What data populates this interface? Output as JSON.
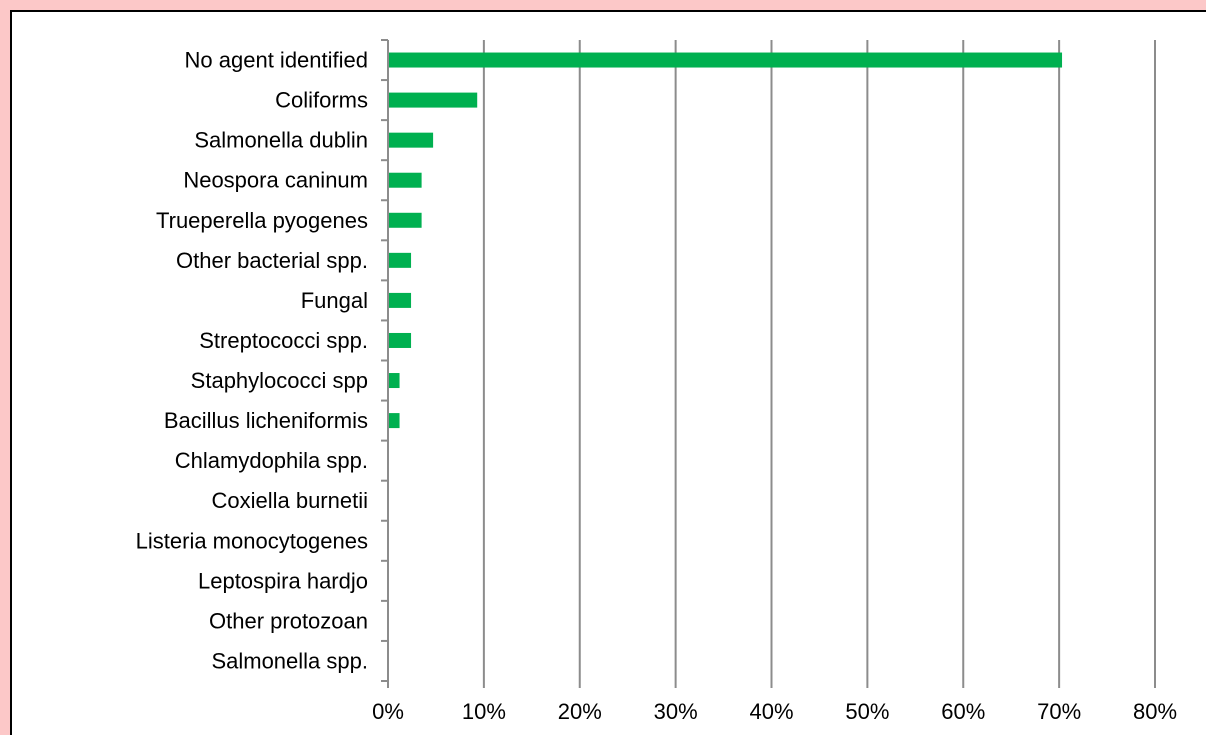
{
  "chart_data": {
    "type": "bar",
    "orientation": "horizontal",
    "categories": [
      "No agent identified",
      "Coliforms",
      "Salmonella dublin",
      "Neospora caninum",
      "Trueperella pyogenes",
      "Other bacterial spp.",
      "Fungal",
      "Streptococci spp.",
      "Staphylococci spp",
      "Bacillus licheniformis",
      "Chlamydophila spp.",
      "Coxiella burnetii",
      "Listeria monocytogenes",
      "Leptospira hardjo",
      "Other protozoan",
      "Salmonella spp."
    ],
    "values": [
      70.2,
      9.2,
      4.6,
      3.4,
      3.4,
      2.3,
      2.3,
      2.3,
      1.1,
      1.1,
      0,
      0,
      0,
      0,
      0,
      0
    ],
    "value_unit": "%",
    "xlim": [
      0,
      80
    ],
    "x_ticks": [
      0,
      10,
      20,
      30,
      40,
      50,
      60,
      70,
      80
    ],
    "x_tick_labels": [
      "0%",
      "10%",
      "20%",
      "30%",
      "40%",
      "50%",
      "60%",
      "70%",
      "80%"
    ],
    "title": "",
    "xlabel": "",
    "ylabel": "",
    "grid": "vertical",
    "legend": "none",
    "bar_color": "#00b050",
    "grid_color": "#8c8c8c",
    "axis_color": "#8c8c8c",
    "background_color": "#ffffff",
    "page_background_color": "#fcc8c8"
  }
}
